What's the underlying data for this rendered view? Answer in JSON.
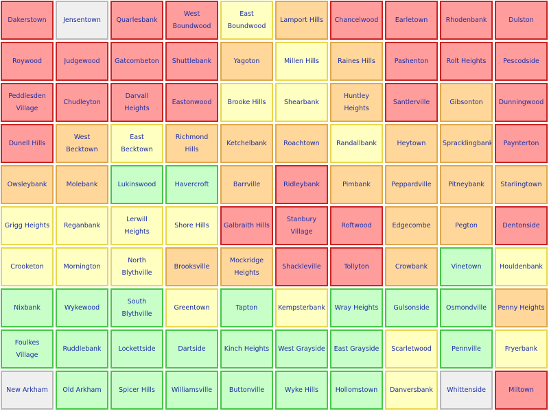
{
  "palette": {
    "red": {
      "fill": "#ff9d9d",
      "border": "#cc2222"
    },
    "orange": {
      "fill": "#ffd79a",
      "border": "#e0a84a"
    },
    "yellow": {
      "fill": "#ffffc2",
      "border": "#e8d84a"
    },
    "green": {
      "fill": "#c8ffc8",
      "border": "#44c844"
    },
    "grey": {
      "fill": "#efefef",
      "border": "#b8b8b8"
    }
  },
  "grid": {
    "columns": 10,
    "rows": [
      [
        {
          "name": "Dakerstown",
          "status": "red"
        },
        {
          "name": "Jensentown",
          "status": "grey"
        },
        {
          "name": "Quarlesbank",
          "status": "red"
        },
        {
          "name": "West Boundwood",
          "status": "red"
        },
        {
          "name": "East Boundwood",
          "status": "yellow"
        },
        {
          "name": "Lamport Hills",
          "status": "orange"
        },
        {
          "name": "Chancelwood",
          "status": "red"
        },
        {
          "name": "Earletown",
          "status": "red"
        },
        {
          "name": "Rhodenbank",
          "status": "red"
        },
        {
          "name": "Dulston",
          "status": "red"
        }
      ],
      [
        {
          "name": "Roywood",
          "status": "red"
        },
        {
          "name": "Judgewood",
          "status": "red"
        },
        {
          "name": "Gatcombeton",
          "status": "red"
        },
        {
          "name": "Shuttlebank",
          "status": "red"
        },
        {
          "name": "Yagoton",
          "status": "orange"
        },
        {
          "name": "Millen Hills",
          "status": "yellow"
        },
        {
          "name": "Raines Hills",
          "status": "orange"
        },
        {
          "name": "Pashenton",
          "status": "red"
        },
        {
          "name": "Rolt Heights",
          "status": "red"
        },
        {
          "name": "Pescodside",
          "status": "red"
        }
      ],
      [
        {
          "name": "Peddlesden Village",
          "status": "red"
        },
        {
          "name": "Chudleyton",
          "status": "red"
        },
        {
          "name": "Darvall Heights",
          "status": "red"
        },
        {
          "name": "Eastonwood",
          "status": "red"
        },
        {
          "name": "Brooke Hills",
          "status": "yellow"
        },
        {
          "name": "Shearbank",
          "status": "yellow"
        },
        {
          "name": "Huntley Heights",
          "status": "orange"
        },
        {
          "name": "Santlerville",
          "status": "red"
        },
        {
          "name": "Gibsonton",
          "status": "orange"
        },
        {
          "name": "Dunningwood",
          "status": "red"
        }
      ],
      [
        {
          "name": "Dunell Hills",
          "status": "red"
        },
        {
          "name": "West Becktown",
          "status": "orange"
        },
        {
          "name": "East Becktown",
          "status": "yellow"
        },
        {
          "name": "Richmond Hills",
          "status": "orange"
        },
        {
          "name": "Ketchelbank",
          "status": "orange"
        },
        {
          "name": "Roachtown",
          "status": "orange"
        },
        {
          "name": "Randallbank",
          "status": "yellow"
        },
        {
          "name": "Heytown",
          "status": "orange"
        },
        {
          "name": "Spracklingbank",
          "status": "orange"
        },
        {
          "name": "Paynterton",
          "status": "red"
        }
      ],
      [
        {
          "name": "Owsleybank",
          "status": "orange"
        },
        {
          "name": "Molebank",
          "status": "orange"
        },
        {
          "name": "Lukinswood",
          "status": "green"
        },
        {
          "name": "Havercroft",
          "status": "green"
        },
        {
          "name": "Barrville",
          "status": "orange"
        },
        {
          "name": "Ridleybank",
          "status": "red"
        },
        {
          "name": "Pimbank",
          "status": "orange"
        },
        {
          "name": "Peppardville",
          "status": "orange"
        },
        {
          "name": "Pitneybank",
          "status": "orange"
        },
        {
          "name": "Starlingtown",
          "status": "orange"
        }
      ],
      [
        {
          "name": "Grigg Heights",
          "status": "yellow"
        },
        {
          "name": "Reganbank",
          "status": "yellow"
        },
        {
          "name": "Lerwill Heights",
          "status": "yellow"
        },
        {
          "name": "Shore Hills",
          "status": "yellow"
        },
        {
          "name": "Galbraith Hills",
          "status": "red"
        },
        {
          "name": "Stanbury Village",
          "status": "red"
        },
        {
          "name": "Roftwood",
          "status": "red"
        },
        {
          "name": "Edgecombe",
          "status": "orange"
        },
        {
          "name": "Pegton",
          "status": "orange"
        },
        {
          "name": "Dentonside",
          "status": "red"
        }
      ],
      [
        {
          "name": "Crooketon",
          "status": "yellow"
        },
        {
          "name": "Mornington",
          "status": "yellow"
        },
        {
          "name": "North Blythville",
          "status": "yellow"
        },
        {
          "name": "Brooksville",
          "status": "orange"
        },
        {
          "name": "Mockridge Heights",
          "status": "orange"
        },
        {
          "name": "Shackleville",
          "status": "red"
        },
        {
          "name": "Tollyton",
          "status": "red"
        },
        {
          "name": "Crowbank",
          "status": "orange"
        },
        {
          "name": "Vinetown",
          "status": "green"
        },
        {
          "name": "Houldenbank",
          "status": "yellow"
        }
      ],
      [
        {
          "name": "Nixbank",
          "status": "green"
        },
        {
          "name": "Wykewood",
          "status": "green"
        },
        {
          "name": "South Blythville",
          "status": "green"
        },
        {
          "name": "Greentown",
          "status": "yellow"
        },
        {
          "name": "Tapton",
          "status": "green"
        },
        {
          "name": "Kempsterbank",
          "status": "yellow"
        },
        {
          "name": "Wray Heights",
          "status": "green"
        },
        {
          "name": "Gulsonside",
          "status": "green"
        },
        {
          "name": "Osmondville",
          "status": "green"
        },
        {
          "name": "Penny Heights",
          "status": "orange"
        }
      ],
      [
        {
          "name": "Foulkes Village",
          "status": "green"
        },
        {
          "name": "Ruddlebank",
          "status": "green"
        },
        {
          "name": "Lockettside",
          "status": "green"
        },
        {
          "name": "Dartside",
          "status": "green"
        },
        {
          "name": "Kinch Heights",
          "status": "green"
        },
        {
          "name": "West Grayside",
          "status": "green"
        },
        {
          "name": "East Grayside",
          "status": "green"
        },
        {
          "name": "Scarletwood",
          "status": "yellow"
        },
        {
          "name": "Pennville",
          "status": "green"
        },
        {
          "name": "Fryerbank",
          "status": "yellow"
        }
      ],
      [
        {
          "name": "New Arkham",
          "status": "grey"
        },
        {
          "name": "Old Arkham",
          "status": "green"
        },
        {
          "name": "Spicer Hills",
          "status": "green"
        },
        {
          "name": "Williamsville",
          "status": "green"
        },
        {
          "name": "Buttonville",
          "status": "green"
        },
        {
          "name": "Wyke Hills",
          "status": "green"
        },
        {
          "name": "Hollomstown",
          "status": "green"
        },
        {
          "name": "Danversbank",
          "status": "yellow"
        },
        {
          "name": "Whittenside",
          "status": "grey"
        },
        {
          "name": "Miltown",
          "status": "red"
        }
      ]
    ]
  }
}
